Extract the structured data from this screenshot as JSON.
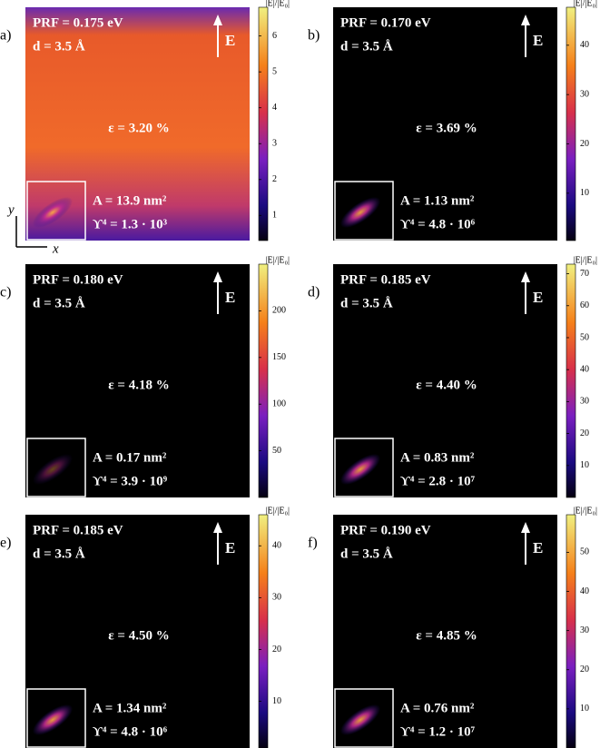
{
  "colorbar_title": "|E|/|E₀|",
  "axes": {
    "x": "x",
    "y": "y"
  },
  "field_label": "E",
  "panels": [
    {
      "label": "a)",
      "prf": "PRF = 0.175 eV",
      "d": "d = 3.5 Å",
      "strain": "ε = 3.20 %",
      "area": "A = 13.9 nm²",
      "upsilon": "ϒ⁴ = 1.3 · 10³",
      "lim": [
        0.3,
        6.8
      ],
      "ticks": [
        1,
        2,
        3,
        4,
        5,
        6
      ]
    },
    {
      "label": "b)",
      "prf": "PRF = 0.170 eV",
      "d": "d = 3.5 Å",
      "strain": "ε = 3.69 %",
      "area": "A = 1.13 nm²",
      "upsilon": "ϒ⁴ = 4.8 · 10⁶",
      "lim": [
        0.4,
        47.7
      ],
      "ticks": [
        10,
        20,
        30,
        40
      ]
    },
    {
      "label": "c)",
      "prf": "PRF = 0.180 eV",
      "d": "d = 3.5 Å",
      "strain": "ε = 4.18 %",
      "area": "A = 0.17 nm²",
      "upsilon": "ϒ⁴ = 3.9 · 10⁹",
      "lim": [
        0,
        250
      ],
      "ticks": [
        50,
        100,
        150,
        200
      ]
    },
    {
      "label": "d)",
      "prf": "PRF = 0.185 eV",
      "d": "d = 3.5 Å",
      "strain": "ε = 4.40 %",
      "area": "A = 0.83 nm²",
      "upsilon": "ϒ⁴ = 2.8 · 10⁷",
      "lim": [
        0,
        73
      ],
      "ticks": [
        10,
        20,
        30,
        40,
        50,
        60,
        70
      ]
    },
    {
      "label": "e)",
      "prf": "PRF = 0.185 eV",
      "d": "d = 3.5 Å",
      "strain": "ε = 4.50 %",
      "area": "A = 1.34 nm²",
      "upsilon": "ϒ⁴ = 4.8 · 10⁶",
      "lim": [
        1,
        46
      ],
      "ticks": [
        10,
        20,
        30,
        40
      ]
    },
    {
      "label": "f)",
      "prf": "PRF = 0.190 eV",
      "d": "d = 3.5 Å",
      "strain": "ε = 4.85 %",
      "area": "A = 0.76 nm²",
      "upsilon": "ϒ⁴ = 1.2 · 10⁷",
      "lim": [
        0,
        59.6
      ],
      "ticks": [
        10,
        20,
        30,
        40,
        50
      ]
    }
  ]
}
